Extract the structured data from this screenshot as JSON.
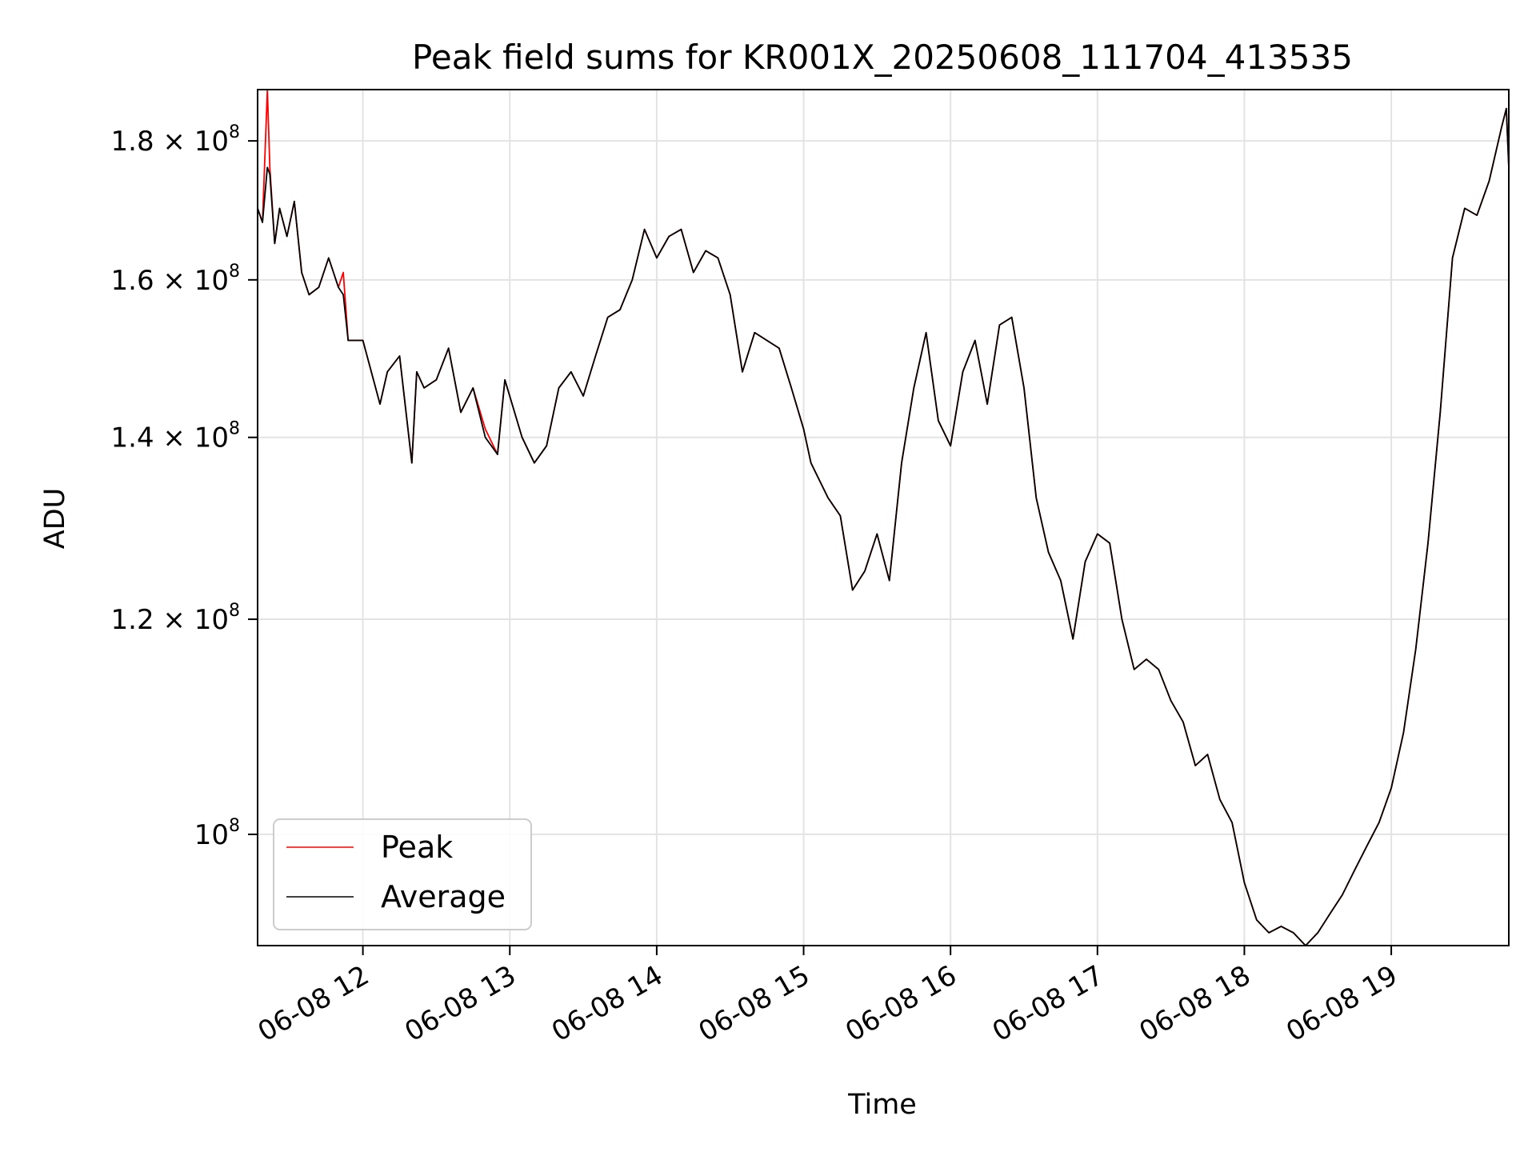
{
  "chart_data": {
    "type": "line",
    "title": "Peak field sums for KR001X_20250608_111704_413535",
    "xlabel": "Time",
    "ylabel": "ADU",
    "y_scale": "log",
    "grid": true,
    "legend_position": "lower-left",
    "xlim": [
      "06-08 11:17",
      "06-08 19:48"
    ],
    "ylim": [
      91000000,
      188000000
    ],
    "x_ticks": [
      {
        "label": "06-08 12",
        "value": "06-08 12:00"
      },
      {
        "label": "06-08 13",
        "value": "06-08 13:00"
      },
      {
        "label": "06-08 14",
        "value": "06-08 14:00"
      },
      {
        "label": "06-08 15",
        "value": "06-08 15:00"
      },
      {
        "label": "06-08 16",
        "value": "06-08 16:00"
      },
      {
        "label": "06-08 17",
        "value": "06-08 17:00"
      },
      {
        "label": "06-08 18",
        "value": "06-08 18:00"
      },
      {
        "label": "06-08 19",
        "value": "06-08 19:00"
      }
    ],
    "y_ticks": [
      {
        "mant": "1.8",
        "value": 180000000
      },
      {
        "mant": "1.6",
        "value": 160000000
      },
      {
        "mant": "1.4",
        "value": 140000000
      },
      {
        "mant": "1.2",
        "value": 120000000
      },
      {
        "mant": "",
        "value": 100000000
      }
    ],
    "x": [
      "06-08 11:17",
      "06-08 11:19",
      "06-08 11:21",
      "06-08 11:22",
      "06-08 11:24",
      "06-08 11:26",
      "06-08 11:29",
      "06-08 11:32",
      "06-08 11:35",
      "06-08 11:38",
      "06-08 11:42",
      "06-08 11:46",
      "06-08 11:50",
      "06-08 11:52",
      "06-08 11:54",
      "06-08 12:00",
      "06-08 12:07",
      "06-08 12:10",
      "06-08 12:15",
      "06-08 12:20",
      "06-08 12:22",
      "06-08 12:25",
      "06-08 12:30",
      "06-08 12:35",
      "06-08 12:40",
      "06-08 12:45",
      "06-08 12:50",
      "06-08 12:55",
      "06-08 12:58",
      "06-08 13:05",
      "06-08 13:10",
      "06-08 13:15",
      "06-08 13:20",
      "06-08 13:25",
      "06-08 13:30",
      "06-08 13:35",
      "06-08 13:40",
      "06-08 13:45",
      "06-08 13:50",
      "06-08 13:55",
      "06-08 14:00",
      "06-08 14:05",
      "06-08 14:10",
      "06-08 14:15",
      "06-08 14:20",
      "06-08 14:25",
      "06-08 14:30",
      "06-08 14:35",
      "06-08 14:40",
      "06-08 14:45",
      "06-08 14:50",
      "06-08 14:55",
      "06-08 15:00",
      "06-08 15:03",
      "06-08 15:10",
      "06-08 15:15",
      "06-08 15:20",
      "06-08 15:25",
      "06-08 15:30",
      "06-08 15:35",
      "06-08 15:40",
      "06-08 15:45",
      "06-08 15:50",
      "06-08 15:55",
      "06-08 16:00",
      "06-08 16:05",
      "06-08 16:10",
      "06-08 16:15",
      "06-08 16:20",
      "06-08 16:25",
      "06-08 16:30",
      "06-08 16:35",
      "06-08 16:40",
      "06-08 16:45",
      "06-08 16:50",
      "06-08 16:55",
      "06-08 17:00",
      "06-08 17:05",
      "06-08 17:10",
      "06-08 17:15",
      "06-08 17:20",
      "06-08 17:25",
      "06-08 17:30",
      "06-08 17:35",
      "06-08 17:40",
      "06-08 17:45",
      "06-08 17:50",
      "06-08 17:55",
      "06-08 18:00",
      "06-08 18:05",
      "06-08 18:10",
      "06-08 18:15",
      "06-08 18:20",
      "06-08 18:25",
      "06-08 18:30",
      "06-08 18:35",
      "06-08 18:40",
      "06-08 18:45",
      "06-08 18:50",
      "06-08 18:55",
      "06-08 19:00",
      "06-08 19:05",
      "06-08 19:10",
      "06-08 19:15",
      "06-08 19:20",
      "06-08 19:25",
      "06-08 19:30",
      "06-08 19:35",
      "06-08 19:40",
      "06-08 19:45",
      "06-08 19:47",
      "06-08 19:48"
    ],
    "series": [
      {
        "name": "Peak",
        "color": "#ff0000",
        "values": [
          170000000,
          168000000,
          188000000,
          176000000,
          165000000,
          170000000,
          166000000,
          171000000,
          161000000,
          158000000,
          159000000,
          163000000,
          159000000,
          161000000,
          152000000,
          152000000,
          144000000,
          148000000,
          150000000,
          137000000,
          148000000,
          146000000,
          147000000,
          151000000,
          143000000,
          146000000,
          141000000,
          138000000,
          147000000,
          140000000,
          137000000,
          139000000,
          146000000,
          148000000,
          145000000,
          150000000,
          155000000,
          156000000,
          160000000,
          167000000,
          163000000,
          166000000,
          167000000,
          161000000,
          164000000,
          163000000,
          158000000,
          148000000,
          153000000,
          152000000,
          151000000,
          146000000,
          141000000,
          137000000,
          133000000,
          131000000,
          123000000,
          125000000,
          129000000,
          124000000,
          137000000,
          146000000,
          153000000,
          142000000,
          139000000,
          148000000,
          152000000,
          144000000,
          154000000,
          155000000,
          146000000,
          133000000,
          127000000,
          124000000,
          118000000,
          126000000,
          129000000,
          128000000,
          120000000,
          115000000,
          116000000,
          115000000,
          112000000,
          110000000,
          106000000,
          107000000,
          103000000,
          101000000,
          96000000,
          93000000,
          92000000,
          92500000,
          92000000,
          91000000,
          92000000,
          93500000,
          95000000,
          97000000,
          99000000,
          101000000,
          104000000,
          109000000,
          117000000,
          128000000,
          143000000,
          163000000,
          170000000,
          169000000,
          174000000,
          182000000,
          185000000,
          176000000
        ]
      },
      {
        "name": "Average",
        "color": "#000000",
        "values": [
          170000000,
          168000000,
          176000000,
          175000000,
          165000000,
          170000000,
          166000000,
          171000000,
          161000000,
          158000000,
          159000000,
          163000000,
          159000000,
          158000000,
          152000000,
          152000000,
          144000000,
          148000000,
          150000000,
          137000000,
          148000000,
          146000000,
          147000000,
          151000000,
          143000000,
          146000000,
          140000000,
          138000000,
          147000000,
          140000000,
          137000000,
          139000000,
          146000000,
          148000000,
          145000000,
          150000000,
          155000000,
          156000000,
          160000000,
          167000000,
          163000000,
          166000000,
          167000000,
          161000000,
          164000000,
          163000000,
          158000000,
          148000000,
          153000000,
          152000000,
          151000000,
          146000000,
          141000000,
          137000000,
          133000000,
          131000000,
          123000000,
          125000000,
          129000000,
          124000000,
          137000000,
          146000000,
          153000000,
          142000000,
          139000000,
          148000000,
          152000000,
          144000000,
          154000000,
          155000000,
          146000000,
          133000000,
          127000000,
          124000000,
          118000000,
          126000000,
          129000000,
          128000000,
          120000000,
          115000000,
          116000000,
          115000000,
          112000000,
          110000000,
          106000000,
          107000000,
          103000000,
          101000000,
          96000000,
          93000000,
          92000000,
          92500000,
          92000000,
          91000000,
          92000000,
          93500000,
          95000000,
          97000000,
          99000000,
          101000000,
          104000000,
          109000000,
          117000000,
          128000000,
          143000000,
          163000000,
          170000000,
          169000000,
          174000000,
          182000000,
          185000000,
          176000000
        ]
      }
    ]
  }
}
